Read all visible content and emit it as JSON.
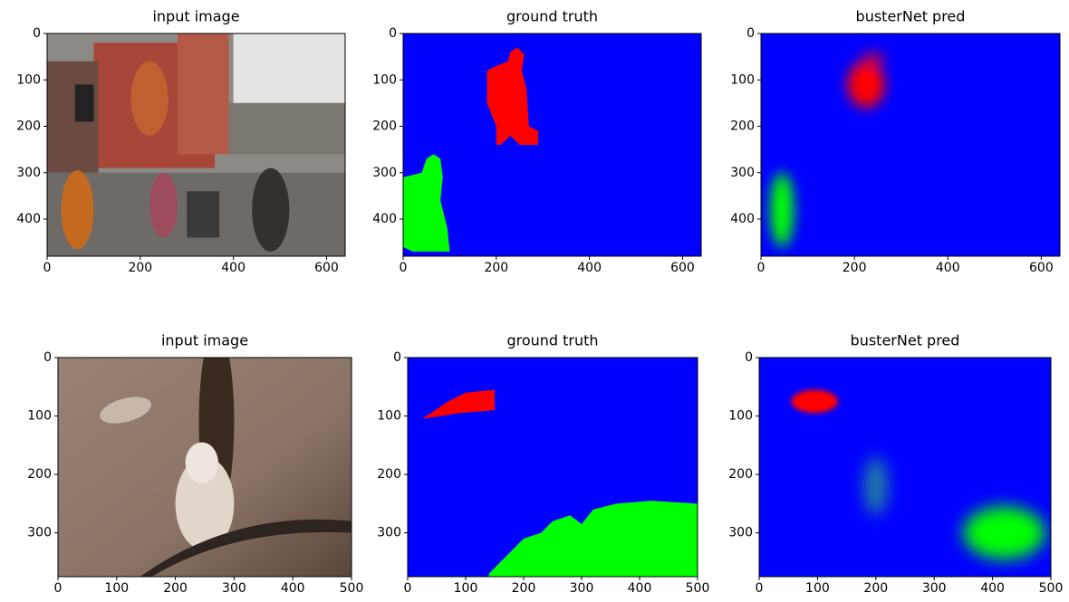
{
  "chart_data": [
    {
      "type": "image",
      "title": "input image",
      "xlim": [
        0,
        640
      ],
      "ylim": [
        480,
        0
      ],
      "xticks": [
        0,
        200,
        400,
        600
      ],
      "yticks": [
        0,
        100,
        200,
        300,
        400
      ]
    },
    {
      "type": "image",
      "title": "ground truth",
      "xlim": [
        0,
        640
      ],
      "ylim": [
        480,
        0
      ],
      "xticks": [
        0,
        200,
        400,
        600
      ],
      "yticks": [
        0,
        100,
        200,
        300,
        400
      ]
    },
    {
      "type": "image",
      "title": "busterNet pred",
      "xlim": [
        0,
        640
      ],
      "ylim": [
        480,
        0
      ],
      "xticks": [
        0,
        200,
        400,
        600
      ],
      "yticks": [
        0,
        100,
        200,
        300,
        400
      ]
    },
    {
      "type": "image",
      "title": "input image",
      "xlim": [
        0,
        500
      ],
      "ylim": [
        375,
        0
      ],
      "xticks": [
        0,
        100,
        200,
        300,
        400,
        500
      ],
      "yticks": [
        0,
        100,
        200,
        300
      ]
    },
    {
      "type": "image",
      "title": "ground truth",
      "xlim": [
        0,
        500
      ],
      "ylim": [
        375,
        0
      ],
      "xticks": [
        0,
        100,
        200,
        300,
        400,
        500
      ],
      "yticks": [
        0,
        100,
        200,
        300
      ]
    },
    {
      "type": "image",
      "title": "busterNet pred",
      "xlim": [
        0,
        500
      ],
      "ylim": [
        375,
        0
      ],
      "xticks": [
        0,
        100,
        200,
        300,
        400,
        500
      ],
      "yticks": [
        0,
        100,
        200,
        300
      ]
    }
  ]
}
